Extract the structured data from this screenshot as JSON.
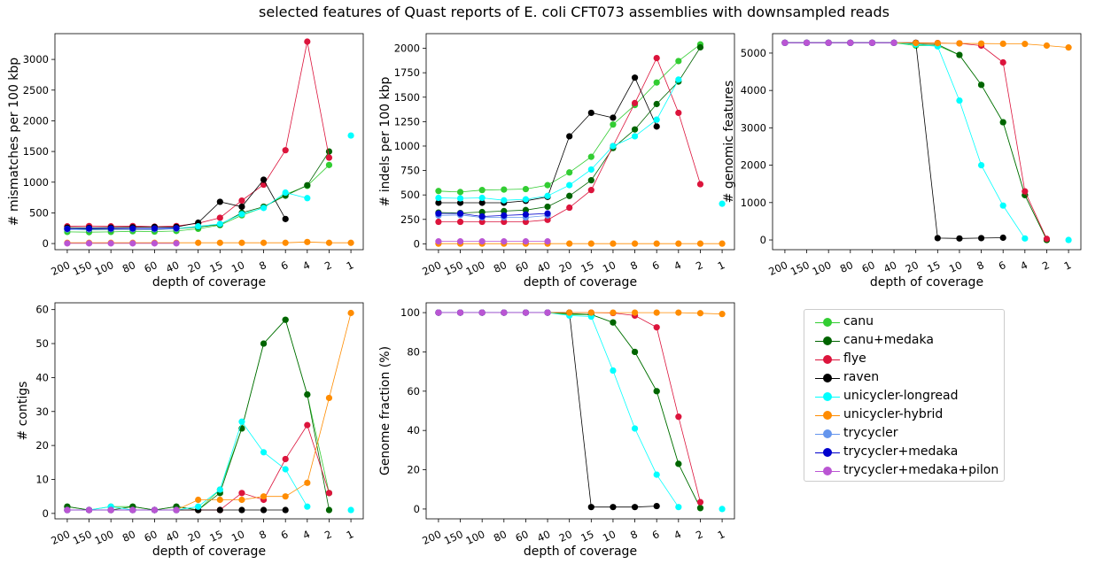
{
  "figure_title": "selected features of Quast reports of E. coli CFT073 assemblies with downsampled reads",
  "chart_data": [
    {
      "type": "line",
      "panel": "top-left",
      "x": [
        "200",
        "150",
        "100",
        "80",
        "60",
        "40",
        "20",
        "15",
        "10",
        "8",
        "6",
        "4",
        "2",
        "1"
      ],
      "xlabel": "depth of coverage",
      "ylabel": "# mismatches per 100 kbp",
      "ylim": [
        -100,
        3420
      ],
      "yticks": [
        0,
        500,
        1000,
        1500,
        2000,
        2500,
        3000
      ],
      "series": [
        {
          "name": "canu",
          "color": "#32cd32",
          "values": [
            190,
            185,
            190,
            200,
            195,
            205,
            240,
            300,
            460,
            590,
            800,
            940,
            1280,
            null
          ]
        },
        {
          "name": "canu+medaka",
          "color": "#006400",
          "values": [
            235,
            225,
            230,
            235,
            230,
            240,
            270,
            310,
            500,
            600,
            780,
            950,
            1500,
            null
          ]
        },
        {
          "name": "flye",
          "color": "#dc143c",
          "values": [
            280,
            285,
            280,
            285,
            275,
            285,
            330,
            420,
            700,
            960,
            1520,
            3290,
            1400,
            null
          ]
        },
        {
          "name": "raven",
          "color": "#000000",
          "values": [
            260,
            255,
            260,
            265,
            270,
            270,
            340,
            680,
            600,
            1040,
            400,
            null,
            null,
            null
          ]
        },
        {
          "name": "unicycler-longread",
          "color": "#00ffff",
          "values": [
            240,
            235,
            240,
            240,
            235,
            245,
            280,
            320,
            480,
            580,
            830,
            740,
            null,
            1760
          ]
        },
        {
          "name": "unicycler-hybrid",
          "color": "#ff8c00",
          "values": [
            12,
            12,
            12,
            12,
            12,
            12,
            12,
            12,
            12,
            12,
            12,
            25,
            12,
            12
          ]
        },
        {
          "name": "trycycler",
          "color": "#6495ed",
          "values": [
            230,
            230,
            235,
            235,
            235,
            240,
            null,
            null,
            null,
            null,
            null,
            null,
            null,
            null
          ]
        },
        {
          "name": "trycycler+medaka",
          "color": "#0000cd",
          "values": [
            240,
            245,
            245,
            245,
            245,
            250,
            null,
            null,
            null,
            null,
            null,
            null,
            null,
            null
          ]
        },
        {
          "name": "trycycler+medaka+pilon",
          "color": "#ba55d3",
          "values": [
            3,
            3,
            3,
            3,
            3,
            3,
            null,
            null,
            null,
            null,
            null,
            null,
            null,
            null
          ]
        }
      ]
    },
    {
      "type": "line",
      "panel": "top-middle",
      "x": [
        "200",
        "150",
        "100",
        "80",
        "60",
        "40",
        "20",
        "15",
        "10",
        "8",
        "6",
        "4",
        "2",
        "1"
      ],
      "xlabel": "depth of coverage",
      "ylabel": "# indels per 100 kbp",
      "ylim": [
        -60,
        2150
      ],
      "yticks": [
        0,
        250,
        500,
        750,
        1000,
        1250,
        1500,
        1750,
        2000
      ],
      "series": [
        {
          "name": "canu",
          "color": "#32cd32",
          "values": [
            540,
            530,
            550,
            555,
            560,
            600,
            730,
            890,
            1220,
            1420,
            1650,
            1870,
            2040,
            null
          ]
        },
        {
          "name": "canu+medaka",
          "color": "#006400",
          "values": [
            320,
            315,
            325,
            335,
            345,
            380,
            490,
            650,
            980,
            1170,
            1430,
            1660,
            2010,
            null
          ]
        },
        {
          "name": "flye",
          "color": "#dc143c",
          "values": [
            225,
            225,
            225,
            225,
            225,
            245,
            370,
            550,
            1000,
            1440,
            1900,
            1340,
            610,
            null
          ]
        },
        {
          "name": "raven",
          "color": "#000000",
          "values": [
            420,
            420,
            420,
            420,
            440,
            480,
            1100,
            1340,
            1290,
            1700,
            1200,
            null,
            null,
            null
          ]
        },
        {
          "name": "unicycler-longread",
          "color": "#00ffff",
          "values": [
            470,
            465,
            470,
            445,
            455,
            490,
            600,
            760,
            1000,
            1100,
            1270,
            1680,
            null,
            410
          ]
        },
        {
          "name": "unicycler-hybrid",
          "color": "#ff8c00",
          "values": [
            2,
            2,
            2,
            2,
            2,
            2,
            2,
            2,
            2,
            2,
            2,
            2,
            2,
            2
          ]
        },
        {
          "name": "trycycler",
          "color": "#6495ed",
          "values": [
            290,
            295,
            270,
            270,
            270,
            290,
            null,
            null,
            null,
            null,
            null,
            null,
            null,
            null
          ]
        },
        {
          "name": "trycycler+medaka",
          "color": "#0000cd",
          "values": [
            310,
            310,
            280,
            290,
            300,
            310,
            null,
            null,
            null,
            null,
            null,
            null,
            null,
            null
          ]
        },
        {
          "name": "trycycler+medaka+pilon",
          "color": "#ba55d3",
          "values": [
            25,
            25,
            25,
            25,
            25,
            25,
            null,
            null,
            null,
            null,
            null,
            null,
            null,
            null
          ]
        }
      ]
    },
    {
      "type": "line",
      "panel": "top-right",
      "x": [
        "200",
        "150",
        "100",
        "80",
        "60",
        "40",
        "20",
        "15",
        "10",
        "8",
        "6",
        "4",
        "2",
        "1"
      ],
      "xlabel": "depth of coverage",
      "ylabel": "# genomic features",
      "ylim": [
        -260,
        5520
      ],
      "yticks": [
        0,
        1000,
        2000,
        3000,
        4000,
        5000
      ],
      "series": [
        {
          "name": "canu",
          "color": "#32cd32",
          "values": [
            5275,
            5275,
            5275,
            5275,
            5275,
            5275,
            5200,
            5200,
            4950,
            4150,
            3150,
            1200,
            0,
            null
          ]
        },
        {
          "name": "canu+medaka",
          "color": "#006400",
          "values": [
            5275,
            5275,
            5275,
            5275,
            5275,
            5275,
            5240,
            5230,
            4950,
            4150,
            3150,
            1200,
            0,
            null
          ]
        },
        {
          "name": "flye",
          "color": "#dc143c",
          "values": [
            5275,
            5275,
            5275,
            5275,
            5275,
            5275,
            5275,
            5270,
            5260,
            5200,
            4750,
            1300,
            30,
            null
          ]
        },
        {
          "name": "raven",
          "color": "#000000",
          "values": [
            5275,
            5275,
            5275,
            5275,
            5275,
            5275,
            5275,
            50,
            40,
            50,
            60,
            null,
            null,
            null
          ]
        },
        {
          "name": "unicycler-longread",
          "color": "#00ffff",
          "values": [
            5275,
            5275,
            5275,
            5275,
            5275,
            5275,
            5230,
            5180,
            3730,
            2000,
            920,
            40,
            null,
            0
          ]
        },
        {
          "name": "unicycler-hybrid",
          "color": "#ff8c00",
          "values": [
            5275,
            5275,
            5275,
            5275,
            5275,
            5275,
            5270,
            5265,
            5260,
            5255,
            5250,
            5245,
            5200,
            5150
          ]
        },
        {
          "name": "trycycler",
          "color": "#6495ed",
          "values": [
            5275,
            5275,
            5275,
            5275,
            5275,
            5275,
            null,
            null,
            null,
            null,
            null,
            null,
            null,
            null
          ]
        },
        {
          "name": "trycycler+medaka",
          "color": "#0000cd",
          "values": [
            5275,
            5275,
            5275,
            5275,
            5275,
            5275,
            null,
            null,
            null,
            null,
            null,
            null,
            null,
            null
          ]
        },
        {
          "name": "trycycler+medaka+pilon",
          "color": "#ba55d3",
          "values": [
            5275,
            5275,
            5275,
            5275,
            5275,
            5275,
            null,
            null,
            null,
            null,
            null,
            null,
            null,
            null
          ]
        }
      ]
    },
    {
      "type": "line",
      "panel": "bottom-left",
      "x": [
        "200",
        "150",
        "100",
        "80",
        "60",
        "40",
        "20",
        "15",
        "10",
        "8",
        "6",
        "4",
        "2",
        "1"
      ],
      "xlabel": "depth of coverage",
      "ylabel": "# contigs",
      "ylim": [
        -1.6,
        62
      ],
      "yticks": [
        0,
        10,
        20,
        30,
        40,
        50,
        60
      ],
      "series": [
        {
          "name": "canu",
          "color": "#32cd32",
          "values": [
            2,
            1,
            2,
            2,
            1,
            2,
            1,
            7,
            25,
            50,
            57,
            35,
            6,
            null
          ]
        },
        {
          "name": "canu+medaka",
          "color": "#006400",
          "values": [
            2,
            1,
            1,
            2,
            1,
            2,
            1,
            6,
            25,
            50,
            57,
            35,
            1,
            null
          ]
        },
        {
          "name": "flye",
          "color": "#dc143c",
          "values": [
            1,
            1,
            1,
            1,
            1,
            1,
            1,
            1,
            6,
            4,
            16,
            26,
            6,
            null
          ]
        },
        {
          "name": "raven",
          "color": "#000000",
          "values": [
            1,
            1,
            1,
            1,
            1,
            1,
            1,
            1,
            1,
            1,
            1,
            null,
            null,
            null
          ]
        },
        {
          "name": "unicycler-longread",
          "color": "#00ffff",
          "values": [
            1,
            1,
            2,
            1,
            1,
            1,
            2,
            7,
            27,
            18,
            13,
            2,
            null,
            1
          ]
        },
        {
          "name": "unicycler-hybrid",
          "color": "#ff8c00",
          "values": [
            1,
            1,
            1,
            1,
            1,
            1,
            4,
            4,
            4,
            5,
            5,
            9,
            34,
            59
          ]
        },
        {
          "name": "trycycler",
          "color": "#6495ed",
          "values": [
            1,
            1,
            1,
            1,
            1,
            1,
            null,
            null,
            null,
            null,
            null,
            null,
            null,
            null
          ]
        },
        {
          "name": "trycycler+medaka",
          "color": "#0000cd",
          "values": [
            1,
            1,
            1,
            1,
            1,
            1,
            null,
            null,
            null,
            null,
            null,
            null,
            null,
            null
          ]
        },
        {
          "name": "trycycler+medaka+pilon",
          "color": "#ba55d3",
          "values": [
            1,
            1,
            1,
            1,
            1,
            1,
            null,
            null,
            null,
            null,
            null,
            null,
            null,
            null
          ]
        }
      ]
    },
    {
      "type": "line",
      "panel": "bottom-middle",
      "x": [
        "200",
        "150",
        "100",
        "80",
        "60",
        "40",
        "20",
        "15",
        "10",
        "8",
        "6",
        "4",
        "2",
        "1"
      ],
      "xlabel": "depth of coverage",
      "ylabel": "Genome fraction (%)",
      "ylim": [
        -5,
        105
      ],
      "yticks": [
        0,
        20,
        40,
        60,
        80,
        100
      ],
      "series": [
        {
          "name": "canu",
          "color": "#32cd32",
          "values": [
            100,
            100,
            100,
            100,
            100,
            100,
            99,
            99,
            95,
            80,
            60,
            23,
            0.5,
            null
          ]
        },
        {
          "name": "canu+medaka",
          "color": "#006400",
          "values": [
            100,
            100,
            100,
            100,
            100,
            100,
            99.5,
            99,
            95,
            80,
            60,
            23,
            0.5,
            null
          ]
        },
        {
          "name": "flye",
          "color": "#dc143c",
          "values": [
            100,
            100,
            100,
            100,
            100,
            100,
            100,
            100,
            99.8,
            98.5,
            92.5,
            47,
            3.5,
            null
          ]
        },
        {
          "name": "raven",
          "color": "#000000",
          "values": [
            100,
            100,
            100,
            100,
            100,
            100,
            100,
            1,
            1,
            1,
            1.5,
            null,
            null,
            null
          ]
        },
        {
          "name": "unicycler-longread",
          "color": "#00ffff",
          "values": [
            100,
            100,
            100,
            100,
            100,
            100,
            98.5,
            98,
            70.5,
            41,
            17.5,
            1,
            null,
            0
          ]
        },
        {
          "name": "unicycler-hybrid",
          "color": "#ff8c00",
          "values": [
            100,
            100,
            100,
            100,
            100,
            100,
            100,
            100,
            100,
            100,
            100,
            100,
            99.7,
            99.3
          ]
        },
        {
          "name": "trycycler",
          "color": "#6495ed",
          "values": [
            100,
            100,
            100,
            100,
            100,
            100,
            null,
            null,
            null,
            null,
            null,
            null,
            null,
            null
          ]
        },
        {
          "name": "trycycler+medaka",
          "color": "#0000cd",
          "values": [
            100,
            100,
            100,
            100,
            100,
            100,
            null,
            null,
            null,
            null,
            null,
            null,
            null,
            null
          ]
        },
        {
          "name": "trycycler+medaka+pilon",
          "color": "#ba55d3",
          "values": [
            100,
            100,
            100,
            100,
            100,
            100,
            null,
            null,
            null,
            null,
            null,
            null,
            null,
            null
          ]
        }
      ]
    }
  ],
  "legend": {
    "placement": "bottom-right",
    "items": [
      {
        "label": "canu",
        "color": "#32cd32"
      },
      {
        "label": "canu+medaka",
        "color": "#006400"
      },
      {
        "label": "flye",
        "color": "#dc143c"
      },
      {
        "label": "raven",
        "color": "#000000"
      },
      {
        "label": "unicycler-longread",
        "color": "#00ffff"
      },
      {
        "label": "unicycler-hybrid",
        "color": "#ff8c00"
      },
      {
        "label": "trycycler",
        "color": "#6495ed"
      },
      {
        "label": "trycycler+medaka",
        "color": "#0000cd"
      },
      {
        "label": "trycycler+medaka+pilon",
        "color": "#ba55d3"
      }
    ]
  }
}
